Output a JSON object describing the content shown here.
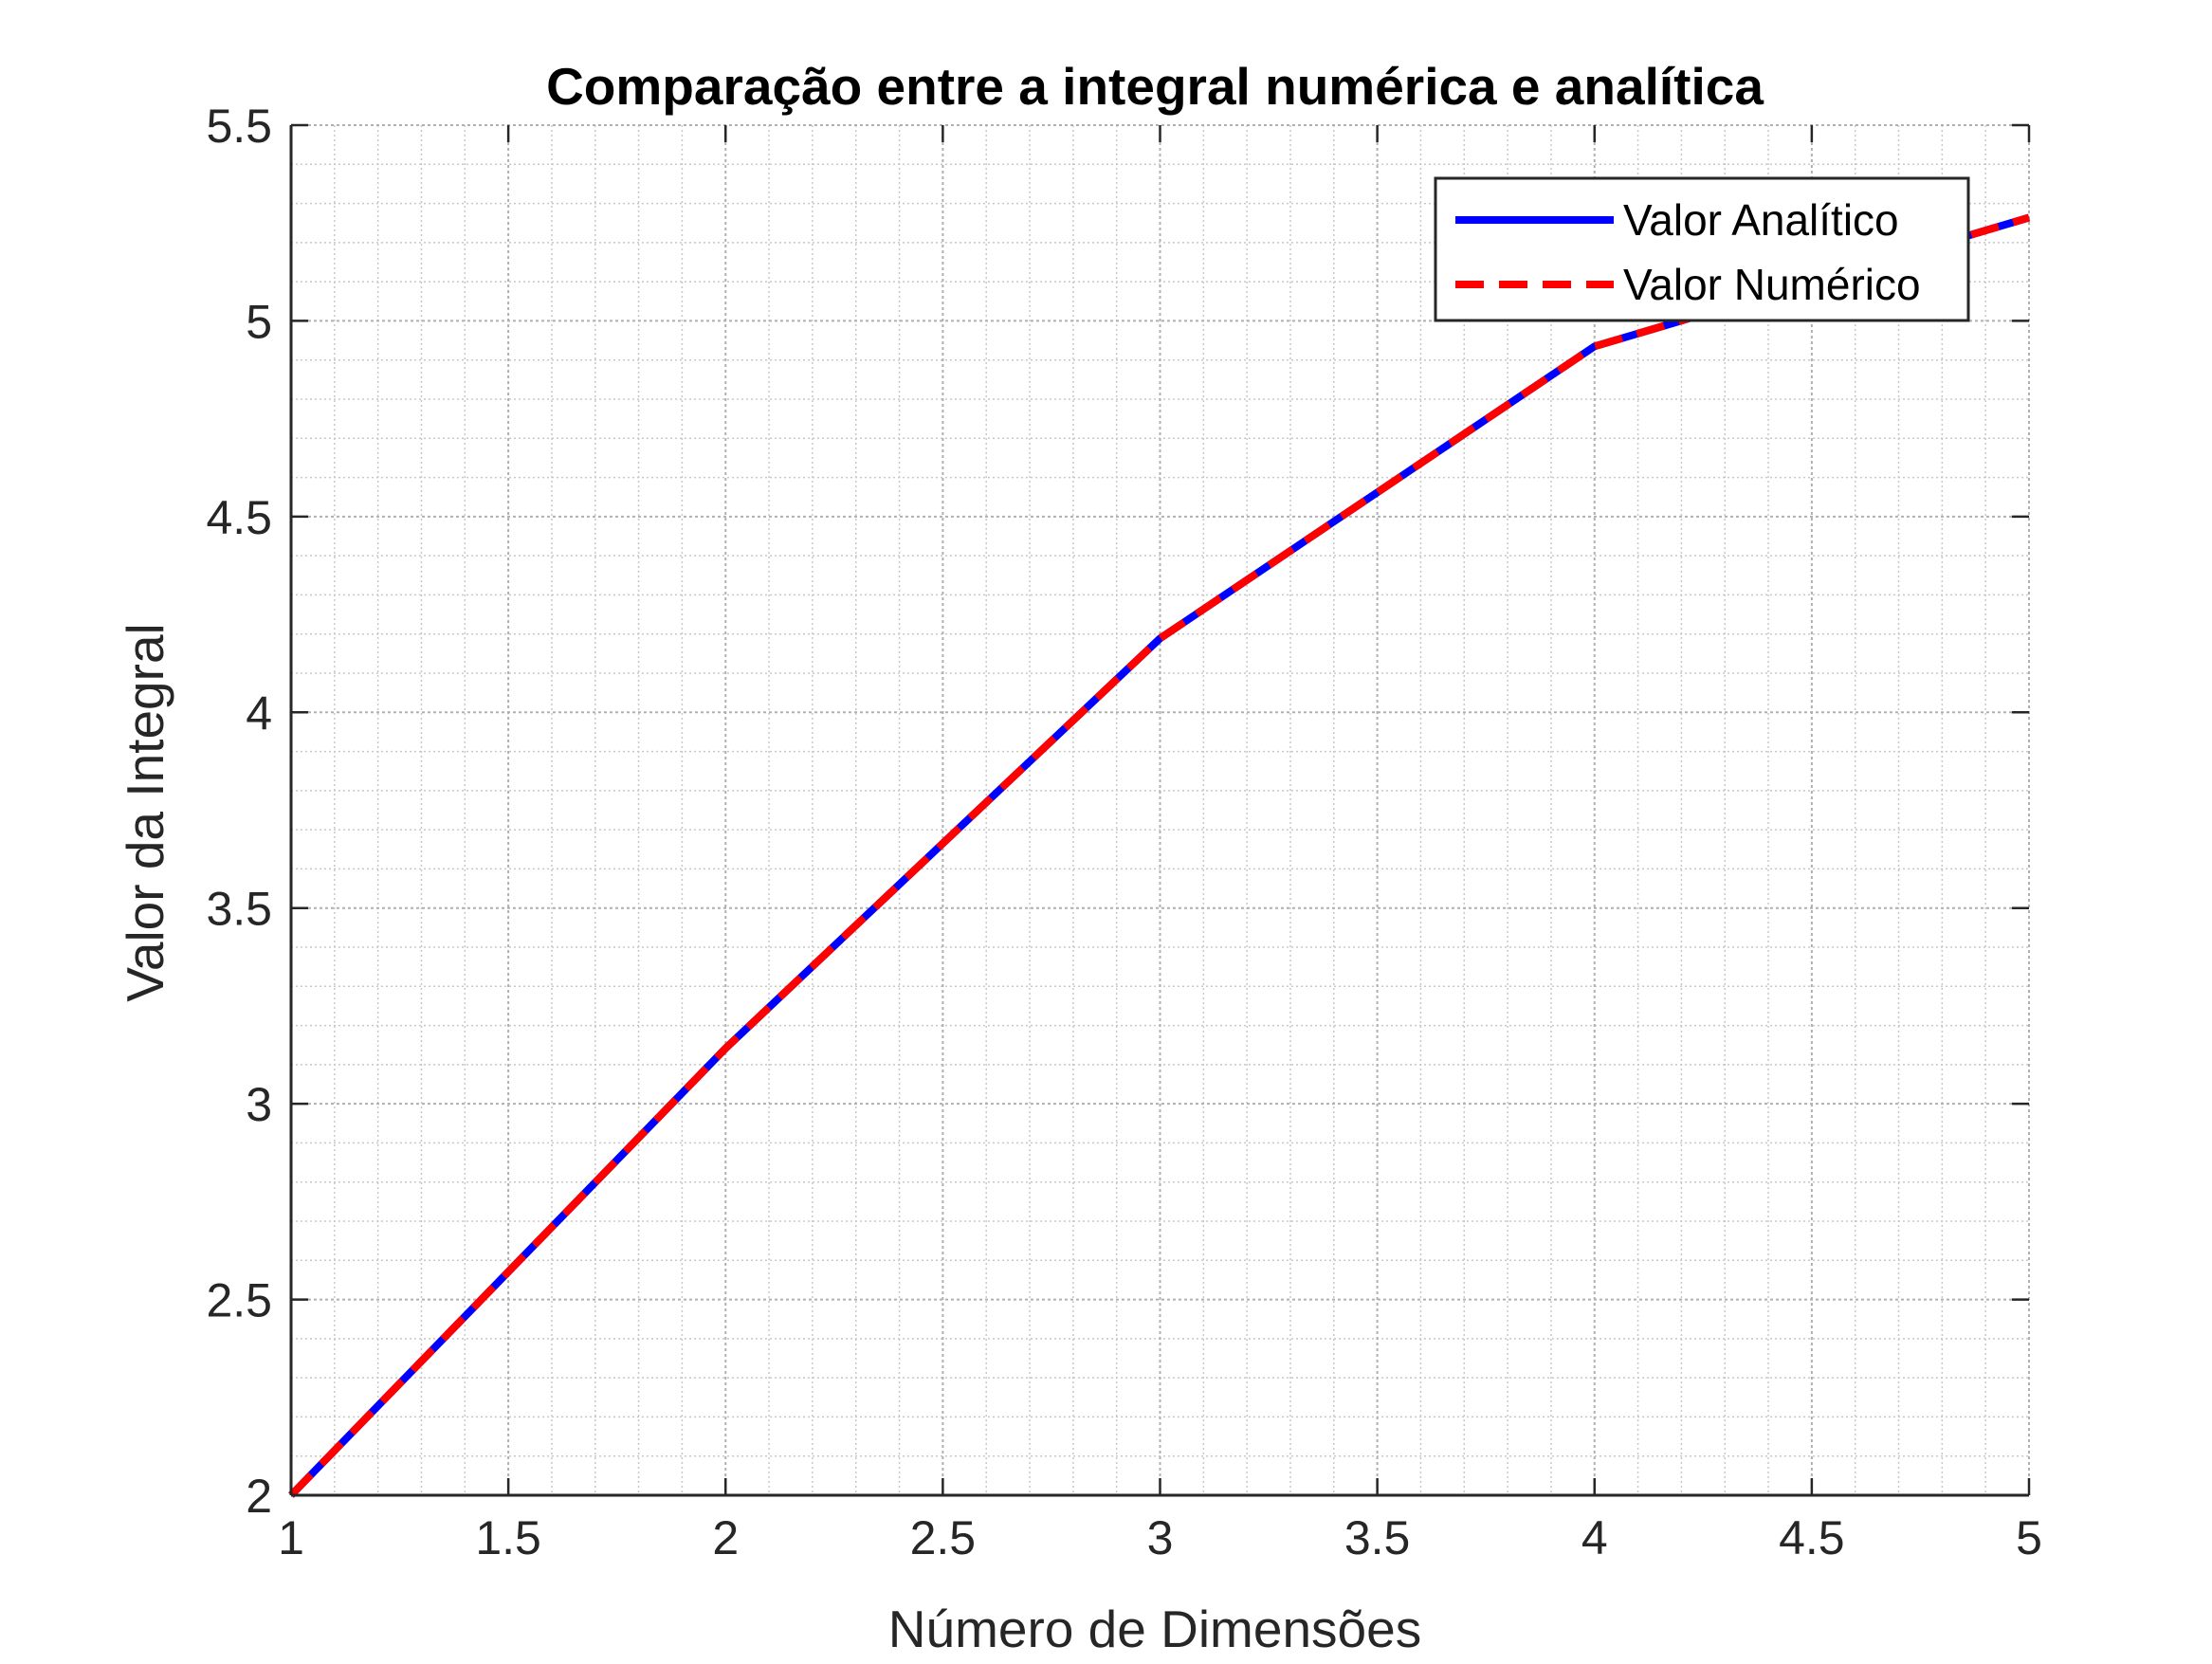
{
  "chart_data": {
    "type": "line",
    "title": "Comparação entre a integral numérica e analítica",
    "xlabel": "Número de Dimensões",
    "ylabel": "Valor da Integral",
    "xlim": [
      1,
      5
    ],
    "ylim": [
      2,
      5.5
    ],
    "xticks": [
      "1",
      "1.5",
      "2",
      "2.5",
      "3",
      "3.5",
      "4",
      "4.5",
      "5"
    ],
    "yticks": [
      "2",
      "2.5",
      "3",
      "3.5",
      "4",
      "4.5",
      "5",
      "5.5"
    ],
    "grid": true,
    "minor_grid": true,
    "legend_position": "top-right",
    "series": [
      {
        "name": "Valor Analítico",
        "color": "#0000ff",
        "style": "solid",
        "x": [
          1,
          2,
          3,
          4,
          5
        ],
        "y": [
          2.0,
          3.1416,
          4.1888,
          4.9348,
          5.2638
        ]
      },
      {
        "name": "Valor Numérico",
        "color": "#ff0000",
        "style": "dashed",
        "x": [
          1,
          2,
          3,
          4,
          5
        ],
        "y": [
          2.0,
          3.1416,
          4.1888,
          4.9348,
          5.2638
        ]
      }
    ]
  }
}
